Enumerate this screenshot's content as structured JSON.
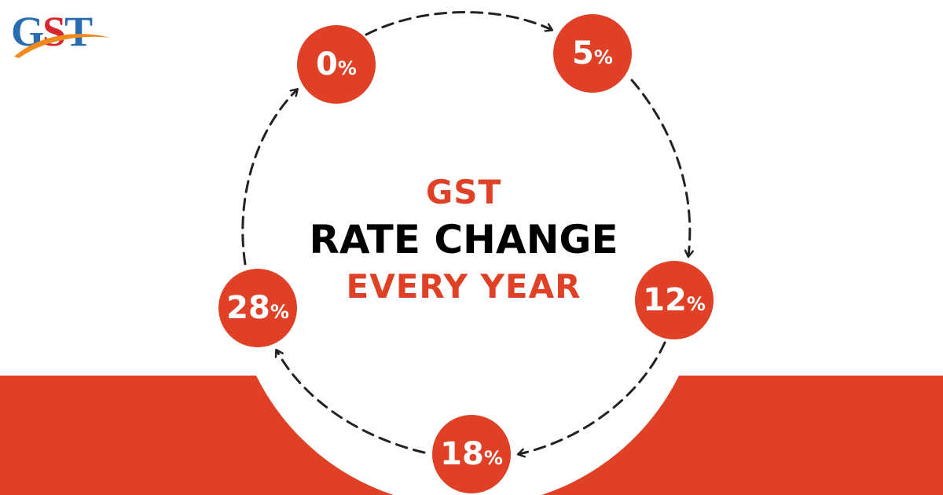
{
  "logo": {
    "letters": [
      "G",
      "S",
      "T"
    ],
    "colors": {
      "blue": "#2a6cb0",
      "red": "#d8262e",
      "swoosh": "#f08a1e"
    }
  },
  "title": {
    "line1": "GST",
    "line2": "RATE CHANGE",
    "line3": "EVERY YEAR"
  },
  "cycle": {
    "direction": "clockwise",
    "nodes": [
      {
        "value": "0",
        "unit": "%"
      },
      {
        "value": "5",
        "unit": "%"
      },
      {
        "value": "12",
        "unit": "%"
      },
      {
        "value": "18",
        "unit": "%"
      },
      {
        "value": "28",
        "unit": "%"
      }
    ]
  },
  "colors": {
    "accent": "#e04126",
    "text_dark": "#000000",
    "arrow": "#222222",
    "background": "#ffffff"
  }
}
